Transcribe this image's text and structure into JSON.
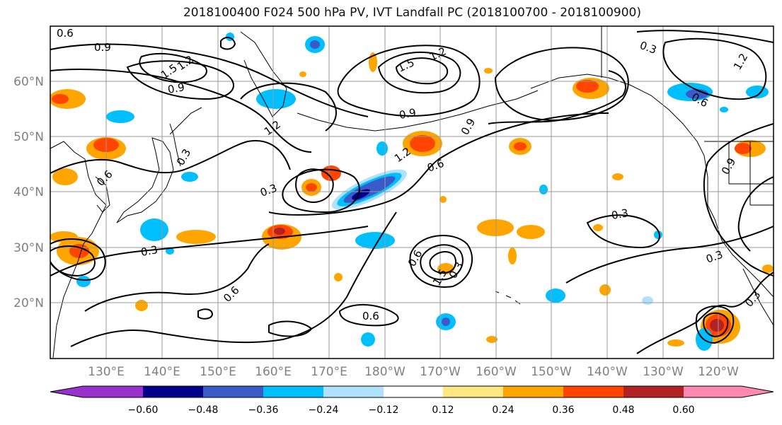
{
  "title": "2018100400 F024 500 hPa PV, IVT Landfall PC (2018100700 - 2018100900)",
  "map": {
    "lat_labels": [
      "60°N",
      "50°N",
      "40°N",
      "30°N",
      "20°N"
    ],
    "lon_labels": [
      "130°E",
      "140°E",
      "150°E",
      "160°E",
      "170°E",
      "180°W",
      "170°W",
      "160°W",
      "150°W",
      "140°W",
      "130°W",
      "120°W"
    ],
    "contour_labels": [
      {
        "text": "0.6"
      },
      {
        "text": "0.9"
      },
      {
        "text": "1.5"
      },
      {
        "text": "1.2"
      },
      {
        "text": "0.9"
      },
      {
        "text": "1.5"
      },
      {
        "text": "1.2"
      },
      {
        "text": "0.9"
      },
      {
        "text": "0.9"
      },
      {
        "text": "1.2"
      },
      {
        "text": "1.2"
      },
      {
        "text": "0.3"
      },
      {
        "text": "0.6"
      },
      {
        "text": "0.3"
      },
      {
        "text": "0.6"
      },
      {
        "text": "0.3"
      },
      {
        "text": "0.6"
      },
      {
        "text": "0.6"
      },
      {
        "text": "1.5"
      },
      {
        "text": "0.3"
      },
      {
        "text": "0.6"
      },
      {
        "text": "0.3"
      },
      {
        "text": "0.3"
      },
      {
        "text": "0.9"
      },
      {
        "text": "0.6"
      },
      {
        "text": "0.3"
      },
      {
        "text": "1.2"
      },
      {
        "text": "0.3"
      }
    ]
  },
  "colorbar": {
    "tick_labels": [
      "−0.60",
      "−0.48",
      "−0.36",
      "−0.24",
      "−0.12",
      "0.12",
      "0.24",
      "0.36",
      "0.48",
      "0.60"
    ],
    "colors": [
      "#9932CC",
      "#00008B",
      "#3A5BC7",
      "#00BFFF",
      "#B0E2FF",
      "#FFFFFF",
      "#FFE882",
      "#FFA500",
      "#FF4500",
      "#B22222",
      "#FF88B0"
    ]
  }
}
